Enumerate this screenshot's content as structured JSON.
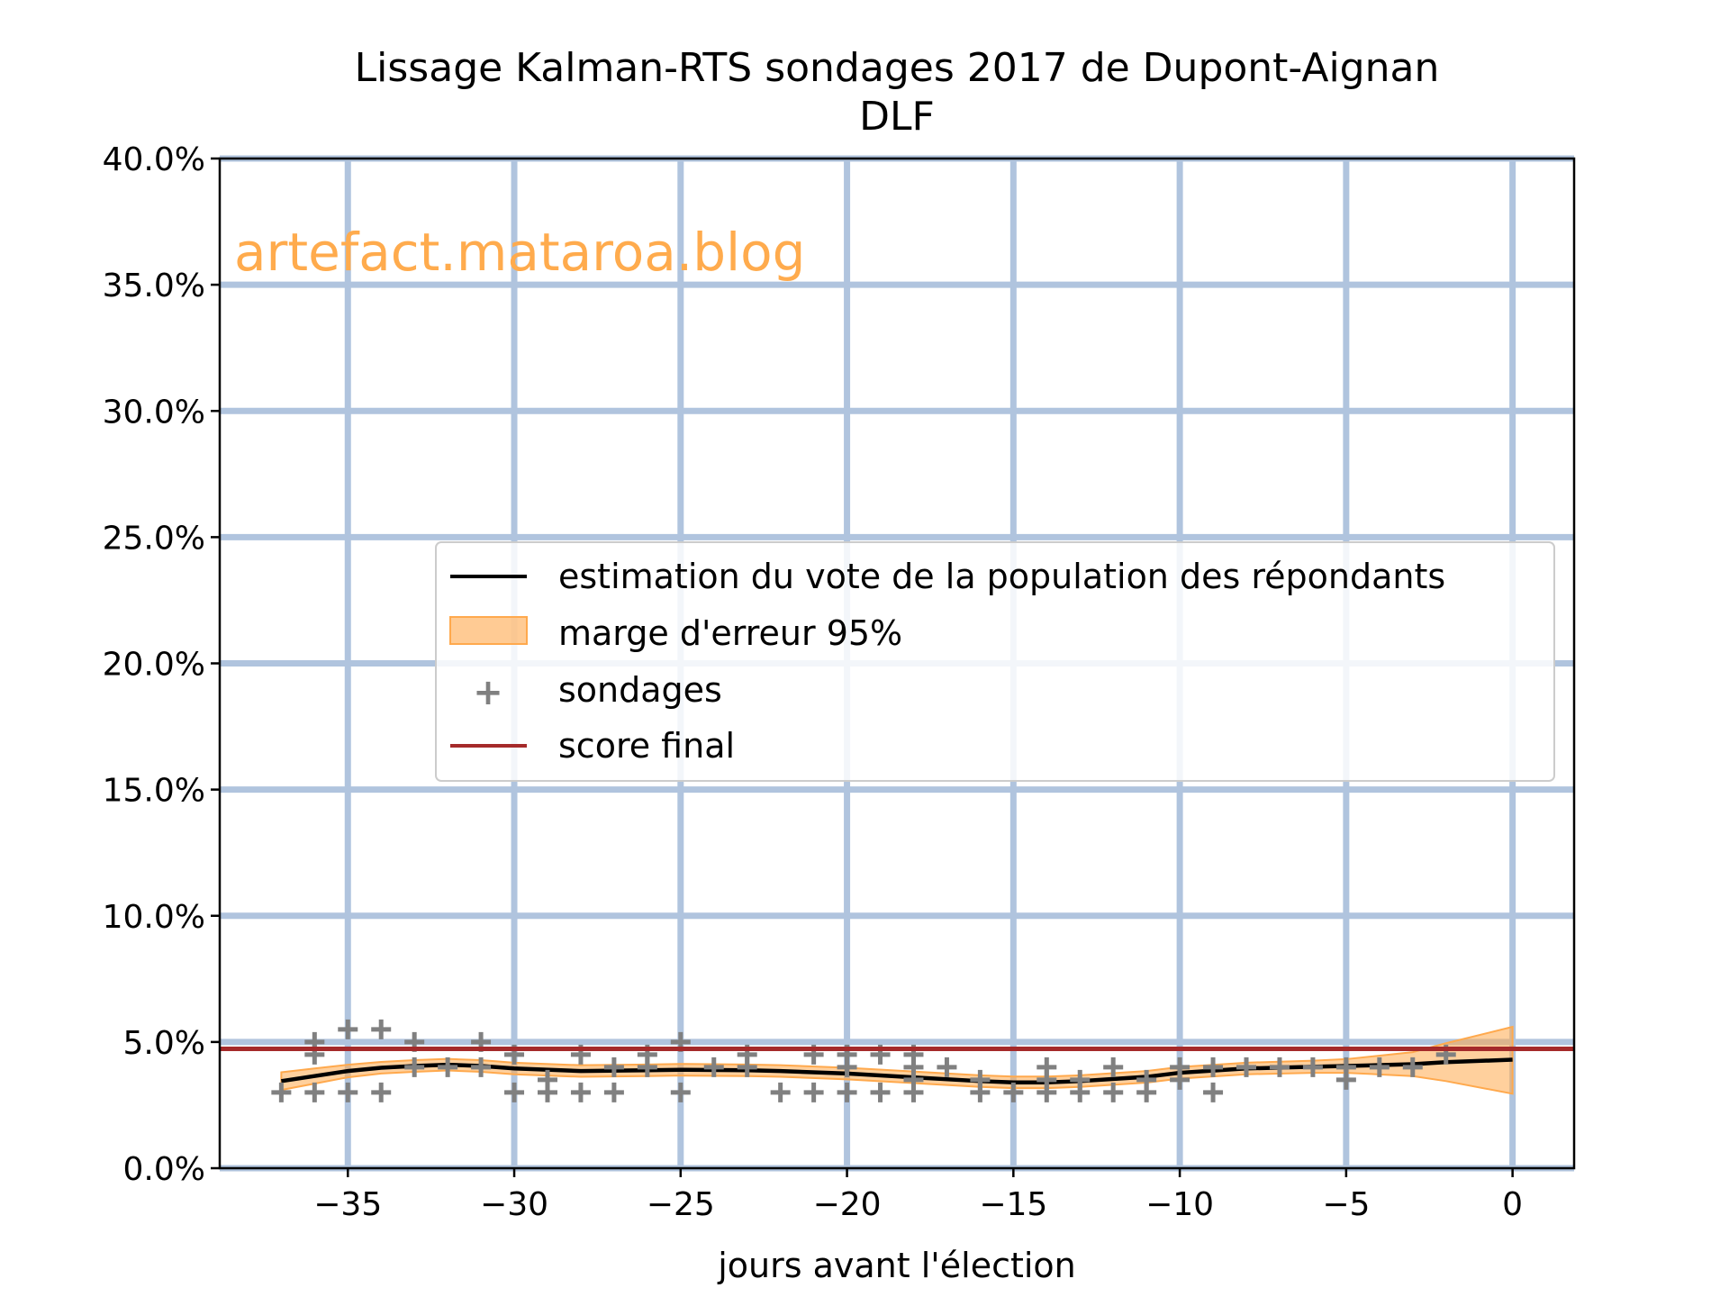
{
  "chart_data": {
    "type": "line",
    "title": "Lissage Kalman-RTS sondages 2017 de Dupont-Aignan",
    "subtitle": "DLF",
    "xlabel": "jours avant l'élection",
    "ylabel": "",
    "xlim": [
      -38.85,
      1.85
    ],
    "ylim": [
      0,
      40
    ],
    "xticks": [
      -35,
      -30,
      -25,
      -20,
      -15,
      -10,
      -5,
      0
    ],
    "xtick_labels": [
      "−35",
      "−30",
      "−25",
      "−20",
      "−15",
      "−10",
      "−5",
      "0"
    ],
    "yticks": [
      0,
      5,
      10,
      15,
      20,
      25,
      30,
      35,
      40
    ],
    "ytick_labels": [
      "0.0%",
      "5.0%",
      "10.0%",
      "15.0%",
      "20.0%",
      "25.0%",
      "30.0%",
      "35.0%",
      "40.0%"
    ],
    "grid": true,
    "watermark": "artefact.mataroa.blog",
    "legend": {
      "placement": "center-right",
      "entries": [
        "estimation du vote de la population des répondants",
        "marge d'erreur 95%",
        "sondages",
        "score final"
      ]
    },
    "colors": {
      "grid": "#b0c4de",
      "estimate": "#000000",
      "band": "#ffa94d",
      "polls": "#808080",
      "final": "#a52a2a",
      "watermark": "#ffab4d"
    },
    "final_score": 4.73,
    "estimate": {
      "x": [
        -37,
        -36,
        -35,
        -34,
        -33,
        -32,
        -31,
        -30,
        -28,
        -26,
        -25,
        -23,
        -22,
        -20,
        -18,
        -16,
        -15,
        -14,
        -13,
        -11,
        -10,
        -8,
        -6,
        -5,
        -3,
        -2,
        0
      ],
      "y": [
        3.45,
        3.65,
        3.85,
        3.98,
        4.05,
        4.1,
        4.05,
        3.95,
        3.85,
        3.88,
        3.9,
        3.88,
        3.85,
        3.75,
        3.6,
        3.45,
        3.4,
        3.4,
        3.45,
        3.62,
        3.78,
        3.95,
        4.02,
        4.05,
        4.12,
        4.2,
        4.3
      ],
      "lower": [
        3.1,
        3.35,
        3.6,
        3.75,
        3.82,
        3.87,
        3.82,
        3.72,
        3.62,
        3.65,
        3.67,
        3.65,
        3.62,
        3.52,
        3.37,
        3.22,
        3.17,
        3.17,
        3.22,
        3.39,
        3.55,
        3.72,
        3.78,
        3.78,
        3.65,
        3.45,
        2.95
      ],
      "upper": [
        3.8,
        3.95,
        4.1,
        4.21,
        4.28,
        4.33,
        4.28,
        4.18,
        4.08,
        4.11,
        4.13,
        4.11,
        4.08,
        3.98,
        3.83,
        3.68,
        3.63,
        3.63,
        3.68,
        3.85,
        4.01,
        4.18,
        4.26,
        4.32,
        4.6,
        4.95,
        5.6
      ]
    },
    "polls": [
      [
        -37,
        3.0
      ],
      [
        -36,
        5.0
      ],
      [
        -36,
        4.5
      ],
      [
        -36,
        3.0
      ],
      [
        -35,
        5.5
      ],
      [
        -35,
        3.0
      ],
      [
        -34,
        5.5
      ],
      [
        -34,
        3.0
      ],
      [
        -33,
        5.0
      ],
      [
        -33,
        4.0
      ],
      [
        -32,
        4.0
      ],
      [
        -31,
        5.0
      ],
      [
        -31,
        4.0
      ],
      [
        -30,
        4.5
      ],
      [
        -30,
        3.0
      ],
      [
        -29,
        3.5
      ],
      [
        -29,
        3.0
      ],
      [
        -28,
        4.5
      ],
      [
        -28,
        3.0
      ],
      [
        -27,
        4.0
      ],
      [
        -27,
        3.0
      ],
      [
        -26,
        4.5
      ],
      [
        -26,
        4.0
      ],
      [
        -25,
        5.0
      ],
      [
        -25,
        3.0
      ],
      [
        -24,
        4.0
      ],
      [
        -23,
        4.5
      ],
      [
        -23,
        4.0
      ],
      [
        -22,
        3.0
      ],
      [
        -21,
        4.5
      ],
      [
        -21,
        3.0
      ],
      [
        -20,
        4.5
      ],
      [
        -20,
        4.0
      ],
      [
        -20,
        3.0
      ],
      [
        -19,
        4.5
      ],
      [
        -19,
        3.0
      ],
      [
        -18,
        4.5
      ],
      [
        -18,
        4.0
      ],
      [
        -18,
        3.5
      ],
      [
        -18,
        3.0
      ],
      [
        -17,
        4.0
      ],
      [
        -16,
        3.5
      ],
      [
        -16,
        3.0
      ],
      [
        -15,
        3.0
      ],
      [
        -14,
        4.0
      ],
      [
        -14,
        3.5
      ],
      [
        -14,
        3.0
      ],
      [
        -13,
        3.5
      ],
      [
        -13,
        3.0
      ],
      [
        -12,
        4.0
      ],
      [
        -12,
        3.0
      ],
      [
        -11,
        3.5
      ],
      [
        -11,
        3.0
      ],
      [
        -10,
        4.0
      ],
      [
        -10,
        3.5
      ],
      [
        -9,
        4.0
      ],
      [
        -9,
        3.0
      ],
      [
        -8,
        4.0
      ],
      [
        -7,
        4.0
      ],
      [
        -6,
        4.0
      ],
      [
        -5,
        4.0
      ],
      [
        -5,
        3.5
      ],
      [
        -4,
        4.0
      ],
      [
        -3,
        4.0
      ],
      [
        -2,
        4.5
      ]
    ]
  }
}
